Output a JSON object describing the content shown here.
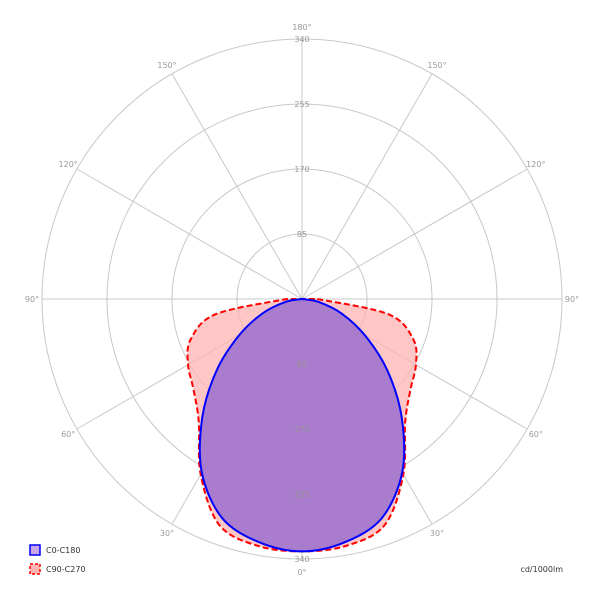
{
  "chart_data": {
    "type": "polar",
    "unit": "cd/1000lm",
    "radial_ticks": [
      85,
      170,
      255,
      340
    ],
    "radial_max": 340,
    "angle_ticks": [
      "0°",
      "30°",
      "60°",
      "90°",
      "120°",
      "150°",
      "180°"
    ],
    "grid": true,
    "legend_position": "bottom-left",
    "series": [
      {
        "name": "C0-C180",
        "color": "#0000ff",
        "fill": "#9b6fcf",
        "line_style": "solid",
        "angles_deg": [
          0,
          10,
          20,
          30,
          40,
          50,
          60,
          70,
          80,
          90
        ],
        "values": [
          330,
          323,
          305,
          262,
          203,
          146,
          95,
          55,
          22,
          0
        ]
      },
      {
        "name": "C90-C270",
        "color": "#ff0000",
        "fill": "#ffb3b3",
        "line_style": "dashed",
        "angles_deg": [
          0,
          10,
          20,
          30,
          40,
          50,
          60,
          70,
          80,
          90
        ],
        "values": [
          330,
          328,
          315,
          265,
          210,
          185,
          172,
          155,
          115,
          20
        ]
      }
    ]
  }
}
